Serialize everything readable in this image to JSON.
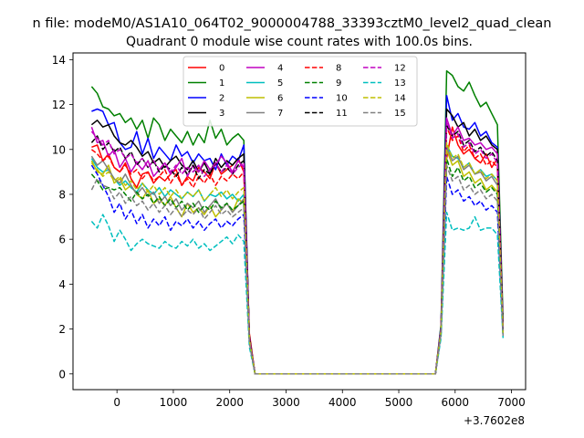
{
  "chart_data": {
    "type": "line",
    "suptitle": "n file: modeM0/AS1A10_064T02_9000004788_33393cztM0_level2_quad_clean",
    "title": "Quadrant 0 module wise count rates with 100.0s bins.",
    "xlabel": "",
    "ylabel": "",
    "x_offset_label": "+3.7602e8",
    "xlim": [
      -780,
      7250
    ],
    "ylim": [
      -0.7,
      14.3
    ],
    "xticks": [
      0,
      1000,
      2000,
      3000,
      4000,
      5000,
      6000,
      7000
    ],
    "xtick_labels": [
      "0",
      "1000",
      "2000",
      "3000",
      "4000",
      "5000",
      "6000",
      "7000"
    ],
    "yticks": [
      0,
      2,
      4,
      6,
      8,
      10,
      12,
      14
    ],
    "ytick_labels": [
      "0",
      "2",
      "4",
      "6",
      "8",
      "10",
      "12",
      "14"
    ],
    "grid": false,
    "legend_position": "upper center",
    "x": [
      -450,
      -350,
      -250,
      -150,
      -50,
      50,
      150,
      250,
      350,
      450,
      550,
      650,
      750,
      850,
      950,
      1050,
      1150,
      1250,
      1350,
      1450,
      1550,
      1650,
      1750,
      1850,
      1950,
      2050,
      2150,
      2250,
      2350,
      2450,
      2550,
      2650,
      5650,
      5750,
      5850,
      5950,
      6050,
      6150,
      6250,
      6350,
      6450,
      6550,
      6650,
      6750,
      6850
    ],
    "series": [
      {
        "name": "0",
        "color": "#ff0000",
        "dashed": false,
        "values": [
          10.1,
          10.2,
          9.5,
          9.8,
          9.2,
          9.0,
          9.4,
          8.7,
          8.3,
          8.9,
          9.0,
          8.5,
          8.8,
          8.6,
          8.9,
          9.1,
          8.4,
          8.8,
          8.6,
          9.2,
          9.0,
          8.7,
          9.4,
          8.9,
          9.1,
          9.3,
          9.6,
          9.0,
          1.8,
          0.0,
          0.0,
          0.0,
          0.0,
          2.0,
          9.6,
          11.0,
          10.2,
          9.8,
          10.0,
          9.6,
          9.4,
          9.8,
          9.2,
          9.6,
          2.0
        ]
      },
      {
        "name": "1",
        "color": "#008000",
        "dashed": false,
        "values": [
          12.8,
          12.5,
          11.9,
          11.8,
          11.5,
          11.6,
          11.2,
          11.4,
          10.9,
          11.3,
          10.5,
          11.4,
          11.1,
          10.4,
          10.9,
          10.6,
          10.3,
          10.8,
          10.2,
          10.7,
          10.3,
          11.3,
          10.5,
          10.9,
          10.2,
          10.5,
          10.7,
          10.4,
          1.6,
          0.0,
          0.0,
          0.0,
          0.0,
          2.2,
          13.5,
          13.3,
          12.8,
          12.6,
          13.0,
          12.4,
          11.9,
          12.1,
          11.6,
          11.1,
          2.4
        ]
      },
      {
        "name": "2",
        "color": "#0000ff",
        "dashed": false,
        "values": [
          11.7,
          11.8,
          11.7,
          11.1,
          11.2,
          10.3,
          10.0,
          10.1,
          10.8,
          9.8,
          10.5,
          9.6,
          10.1,
          9.8,
          9.5,
          10.2,
          9.7,
          9.9,
          9.4,
          9.8,
          9.5,
          9.6,
          9.1,
          9.8,
          9.3,
          9.7,
          9.5,
          10.2,
          1.6,
          0.0,
          0.0,
          0.0,
          0.0,
          2.1,
          12.4,
          11.3,
          11.6,
          11.0,
          10.9,
          11.2,
          10.6,
          10.8,
          10.3,
          10.1,
          2.1
        ]
      },
      {
        "name": "3",
        "color": "#000000",
        "dashed": false,
        "values": [
          11.1,
          11.3,
          11.0,
          11.1,
          10.6,
          10.3,
          10.2,
          10.4,
          10.1,
          9.7,
          9.9,
          9.4,
          9.6,
          9.2,
          9.5,
          9.7,
          9.3,
          9.1,
          9.5,
          9.0,
          9.4,
          8.9,
          9.6,
          9.2,
          9.5,
          9.3,
          9.6,
          9.8,
          1.7,
          0.0,
          0.0,
          0.0,
          0.0,
          2.0,
          11.8,
          11.5,
          11.0,
          11.2,
          10.6,
          10.9,
          10.4,
          10.6,
          10.2,
          10.0,
          2.0
        ]
      },
      {
        "name": "4",
        "color": "#c000c0",
        "dashed": false,
        "values": [
          11.0,
          10.3,
          10.4,
          9.7,
          10.0,
          9.2,
          9.6,
          9.0,
          9.4,
          9.1,
          9.5,
          8.8,
          9.1,
          9.4,
          8.9,
          9.2,
          9.6,
          8.8,
          9.3,
          9.0,
          9.5,
          9.1,
          9.3,
          9.7,
          9.4,
          9.0,
          9.5,
          9.2,
          1.6,
          0.0,
          0.0,
          0.0,
          0.0,
          2.0,
          11.4,
          10.6,
          11.0,
          10.4,
          10.5,
          10.2,
          10.3,
          10.0,
          10.1,
          9.8,
          1.9
        ]
      },
      {
        "name": "5",
        "color": "#00bfbf",
        "dashed": false,
        "values": [
          9.6,
          9.2,
          9.0,
          9.1,
          8.7,
          8.4,
          8.6,
          8.3,
          8.1,
          8.5,
          8.2,
          8.0,
          8.3,
          7.9,
          8.2,
          8.0,
          7.8,
          8.1,
          7.9,
          8.2,
          7.7,
          8.0,
          7.9,
          8.1,
          7.8,
          8.0,
          7.7,
          8.0,
          1.5,
          0.0,
          0.0,
          0.0,
          0.0,
          1.9,
          10.2,
          9.7,
          9.6,
          9.2,
          9.4,
          8.9,
          9.1,
          8.8,
          8.9,
          8.6,
          1.8
        ]
      },
      {
        "name": "6",
        "color": "#bfbf00",
        "dashed": false,
        "values": [
          9.5,
          9.0,
          8.9,
          9.3,
          8.5,
          8.7,
          8.2,
          8.4,
          8.0,
          7.8,
          8.2,
          7.6,
          7.8,
          7.5,
          7.9,
          7.4,
          7.0,
          7.6,
          7.2,
          7.4,
          7.1,
          7.5,
          7.0,
          7.3,
          7.6,
          7.2,
          7.8,
          7.6,
          1.5,
          0.0,
          0.0,
          0.0,
          0.0,
          1.9,
          10.0,
          9.3,
          9.5,
          8.8,
          9.0,
          8.5,
          8.7,
          8.2,
          8.4,
          8.1,
          1.9
        ]
      },
      {
        "name": "7",
        "color": "#808080",
        "dashed": false,
        "values": [
          9.7,
          9.3,
          9.5,
          9.1,
          8.7,
          8.5,
          8.9,
          8.4,
          8.0,
          8.3,
          7.9,
          8.1,
          7.6,
          7.9,
          7.5,
          7.8,
          7.3,
          7.6,
          7.4,
          7.7,
          7.2,
          7.5,
          7.8,
          7.3,
          7.6,
          7.2,
          7.5,
          7.8,
          1.5,
          0.0,
          0.0,
          0.0,
          0.0,
          1.9,
          10.1,
          9.5,
          9.7,
          9.1,
          9.3,
          8.9,
          9.0,
          8.6,
          8.8,
          8.4,
          1.8
        ]
      },
      {
        "name": "8",
        "color": "#ff0000",
        "dashed": true,
        "values": [
          10.0,
          9.8,
          9.5,
          9.7,
          9.2,
          9.0,
          9.3,
          8.9,
          9.1,
          8.7,
          9.0,
          8.6,
          8.8,
          9.1,
          8.5,
          8.9,
          8.4,
          8.7,
          8.3,
          8.8,
          8.5,
          8.9,
          8.4,
          8.8,
          8.6,
          8.9,
          8.7,
          9.0,
          1.6,
          0.0,
          0.0,
          0.0,
          0.0,
          2.0,
          11.0,
          10.4,
          10.6,
          9.9,
          10.2,
          9.6,
          9.8,
          9.3,
          9.5,
          9.2,
          1.9
        ]
      },
      {
        "name": "9",
        "color": "#008000",
        "dashed": true,
        "values": [
          8.9,
          8.6,
          8.2,
          8.3,
          8.2,
          8.3,
          8.0,
          7.7,
          8.1,
          7.8,
          8.0,
          7.6,
          7.9,
          7.5,
          7.8,
          7.4,
          7.7,
          7.3,
          7.6,
          7.2,
          7.5,
          7.3,
          7.7,
          7.4,
          7.6,
          7.3,
          7.5,
          7.7,
          1.5,
          0.0,
          0.0,
          0.0,
          0.0,
          1.8,
          9.6,
          8.8,
          9.2,
          8.6,
          8.8,
          8.3,
          8.5,
          8.1,
          8.3,
          8.0,
          1.8
        ]
      },
      {
        "name": "10",
        "color": "#0000ff",
        "dashed": true,
        "values": [
          9.3,
          8.9,
          8.4,
          7.9,
          7.2,
          7.6,
          6.9,
          7.3,
          6.7,
          7.1,
          6.5,
          6.9,
          6.6,
          7.0,
          6.4,
          6.8,
          6.6,
          6.9,
          6.5,
          6.8,
          6.4,
          6.7,
          6.9,
          6.5,
          6.8,
          6.6,
          6.9,
          7.1,
          1.4,
          0.0,
          0.0,
          0.0,
          0.0,
          1.8,
          8.8,
          8.0,
          8.2,
          7.7,
          7.9,
          7.5,
          7.7,
          7.3,
          7.5,
          7.2,
          1.7
        ]
      },
      {
        "name": "11",
        "color": "#000000",
        "dashed": true,
        "values": [
          10.3,
          10.6,
          10.0,
          10.3,
          9.9,
          10.1,
          9.6,
          9.9,
          9.3,
          9.6,
          9.2,
          9.5,
          9.0,
          9.3,
          9.1,
          8.8,
          9.2,
          8.9,
          9.3,
          8.7,
          9.1,
          8.9,
          9.4,
          9.0,
          9.2,
          8.9,
          9.3,
          9.5,
          1.6,
          0.0,
          0.0,
          0.0,
          0.0,
          2.0,
          11.1,
          10.6,
          10.8,
          10.2,
          10.4,
          9.9,
          10.1,
          9.7,
          9.9,
          9.5,
          1.9
        ]
      },
      {
        "name": "12",
        "color": "#c000c0",
        "dashed": true,
        "values": [
          10.8,
          10.5,
          10.2,
          10.4,
          9.8,
          10.0,
          9.6,
          9.8,
          9.4,
          9.6,
          9.2,
          9.5,
          9.1,
          9.4,
          9.0,
          9.3,
          8.9,
          9.2,
          9.0,
          9.3,
          8.8,
          9.1,
          9.4,
          9.0,
          9.3,
          8.9,
          9.2,
          9.4,
          1.6,
          0.0,
          0.0,
          0.0,
          0.0,
          2.0,
          11.3,
          10.5,
          10.7,
          10.1,
          10.3,
          9.8,
          10.0,
          9.6,
          9.8,
          9.4,
          1.9
        ]
      },
      {
        "name": "13",
        "color": "#00bfbf",
        "dashed": true,
        "values": [
          6.8,
          6.5,
          7.1,
          6.6,
          5.9,
          6.4,
          6.0,
          5.5,
          5.8,
          6.0,
          5.8,
          5.7,
          5.6,
          5.9,
          5.7,
          5.6,
          5.9,
          5.7,
          6.0,
          5.6,
          5.8,
          5.5,
          5.7,
          5.9,
          6.1,
          5.8,
          6.2,
          5.9,
          1.2,
          0.0,
          0.0,
          0.0,
          0.0,
          1.6,
          7.2,
          6.4,
          6.5,
          6.4,
          6.5,
          7.0,
          6.4,
          6.5,
          6.5,
          6.2,
          1.6
        ]
      },
      {
        "name": "14",
        "color": "#bfbf00",
        "dashed": true,
        "values": [
          9.4,
          9.1,
          8.8,
          9.0,
          8.6,
          8.8,
          8.4,
          8.6,
          8.2,
          8.5,
          8.1,
          8.4,
          8.0,
          8.3,
          7.9,
          8.2,
          7.8,
          8.1,
          7.9,
          8.2,
          7.7,
          8.0,
          8.3,
          7.9,
          8.2,
          7.8,
          8.1,
          8.3,
          1.5,
          0.0,
          0.0,
          0.0,
          0.0,
          1.9,
          10.3,
          9.6,
          9.8,
          9.2,
          9.4,
          8.9,
          9.1,
          8.7,
          8.9,
          8.6,
          1.8
        ]
      },
      {
        "name": "15",
        "color": "#808080",
        "dashed": true,
        "values": [
          8.2,
          8.7,
          8.4,
          8.3,
          7.8,
          8.1,
          7.6,
          7.9,
          7.5,
          7.7,
          7.3,
          7.6,
          7.2,
          7.5,
          7.1,
          7.4,
          7.0,
          7.3,
          7.1,
          7.4,
          6.9,
          7.2,
          7.5,
          7.1,
          7.3,
          7.0,
          7.2,
          7.4,
          1.4,
          0.0,
          0.0,
          0.0,
          0.0,
          1.8,
          9.3,
          8.6,
          8.8,
          8.2,
          8.4,
          8.0,
          8.2,
          7.8,
          8.0,
          7.7,
          1.7
        ]
      }
    ]
  }
}
